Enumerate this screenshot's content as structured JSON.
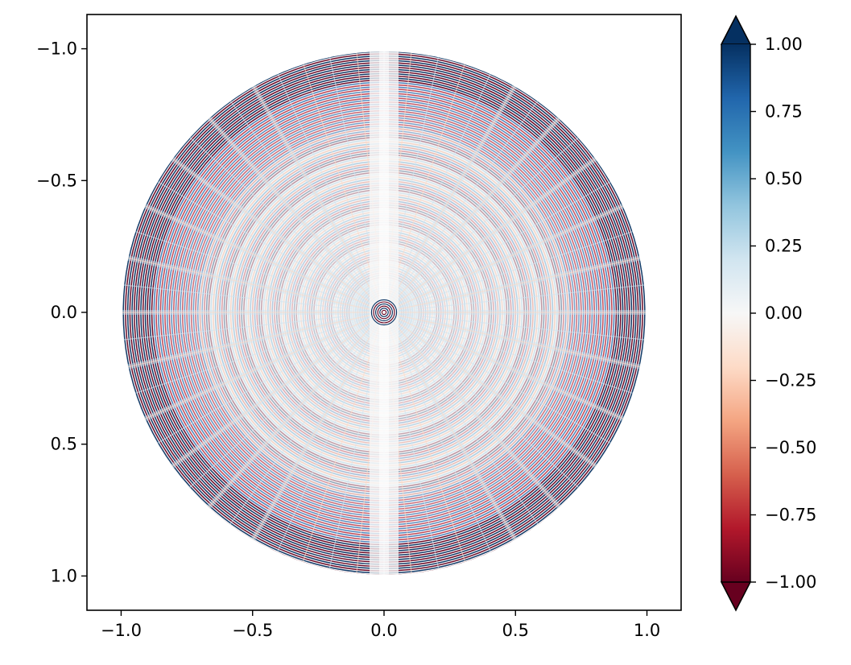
{
  "chart_data": {
    "type": "heatmap",
    "title": "",
    "xlabel": "",
    "ylabel": "",
    "xlim": [
      -1.13,
      1.13
    ],
    "ylim": [
      1.13,
      -1.13
    ],
    "y_inverted": true,
    "x_ticks": [
      -1.0,
      -0.5,
      0.0,
      0.5,
      1.0
    ],
    "x_tick_labels": [
      "−1.0",
      "−0.5",
      "0.0",
      "0.5",
      "1.0"
    ],
    "y_ticks": [
      -1.0,
      -0.5,
      0.0,
      0.5,
      1.0
    ],
    "y_tick_labels": [
      "−1.0",
      "−0.5",
      "0.0",
      "0.5",
      "1.0"
    ],
    "domain": "unit disk, radius 1.0",
    "grid": false,
    "colormap": "RdBu",
    "colorbar": {
      "min": -1.0,
      "max": 1.0,
      "extend": "both",
      "ticks": [
        1.0,
        0.75,
        0.5,
        0.25,
        0.0,
        -0.25,
        -0.5,
        -0.75,
        -1.0
      ],
      "tick_labels": [
        "1.00",
        "0.75",
        "0.50",
        "0.25",
        "0.00",
        "−0.25",
        "−0.50",
        "−0.75",
        "−1.00"
      ],
      "low_color": "#67001f",
      "high_color": "#053061"
    },
    "colors": {
      "red_dark": "#67001f",
      "red": "#b2182b",
      "red_mid": "#d6604d",
      "red_light": "#f4a582",
      "red_pale": "#fddbc7",
      "white": "#f7f7f7",
      "blue_pale": "#d1e5f0",
      "blue_light": "#92c5de",
      "blue_mid": "#4393c3",
      "blue": "#2166ac",
      "blue_dark": "#053061"
    }
  }
}
